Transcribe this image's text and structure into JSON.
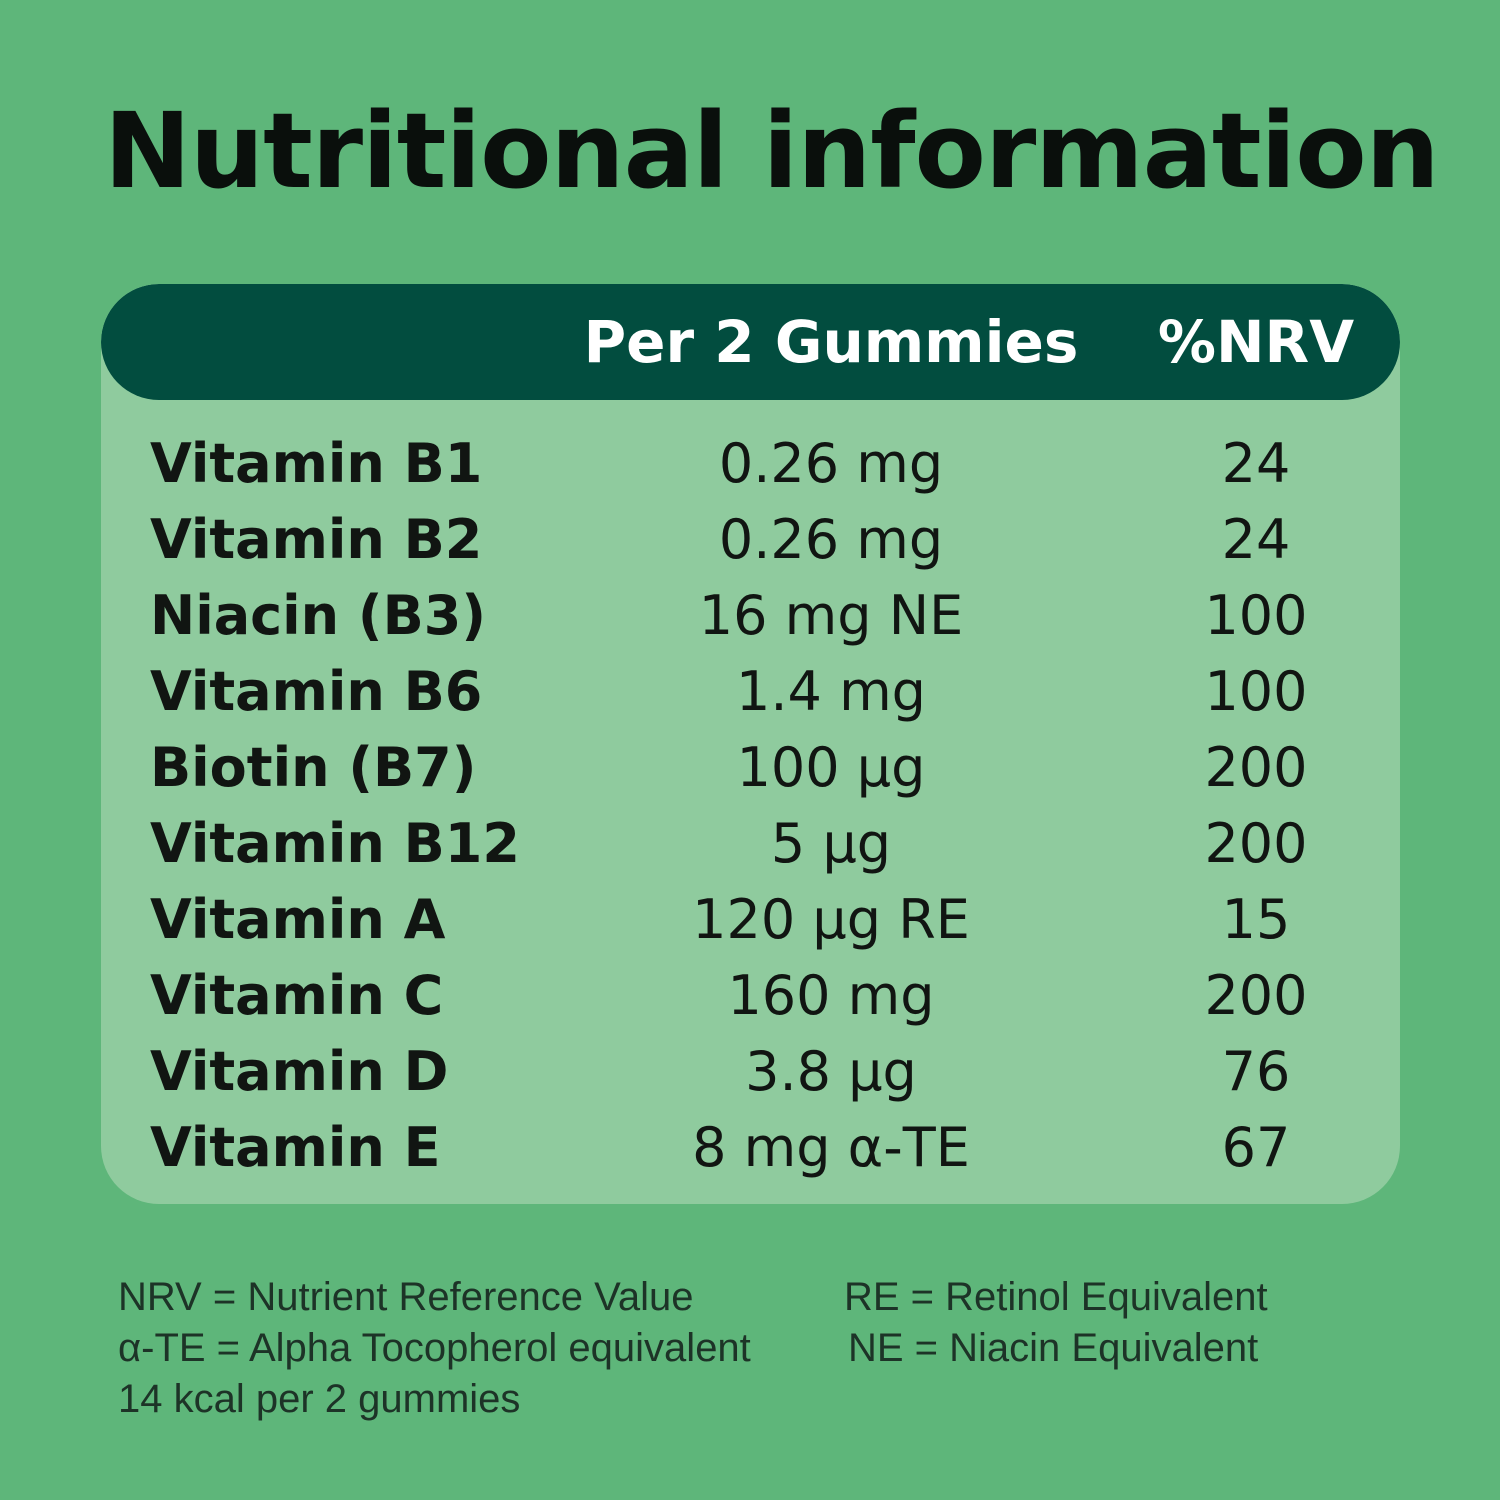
{
  "title": "Nutritional information",
  "table": {
    "header": {
      "amount_label": "Per 2 Gummies",
      "nrv_label": "%NRV"
    },
    "rows": [
      {
        "name": "Vitamin B1",
        "amount": "0.26 mg",
        "nrv": "24"
      },
      {
        "name": "Vitamin B2",
        "amount": "0.26 mg",
        "nrv": "24"
      },
      {
        "name": "Niacin (B3)",
        "amount": "16 mg NE",
        "nrv": "100"
      },
      {
        "name": "Vitamin B6",
        "amount": "1.4 mg",
        "nrv": "100"
      },
      {
        "name": "Biotin (B7)",
        "amount": "100 µg",
        "nrv": "200"
      },
      {
        "name": "Vitamin B12",
        "amount": "5 µg",
        "nrv": "200"
      },
      {
        "name": "Vitamin A",
        "amount": "120 µg RE",
        "nrv": "15"
      },
      {
        "name": "Vitamin C",
        "amount": "160 mg",
        "nrv": "200"
      },
      {
        "name": "Vitamin D",
        "amount": "3.8 µg",
        "nrv": "76"
      },
      {
        "name": "Vitamin E",
        "amount": "8 mg  α-TE",
        "nrv": "67"
      }
    ]
  },
  "footnotes": {
    "nrv": "NRV = Nutrient Reference Value",
    "ate": "α-TE = Alpha Tocopherol equivalent",
    "kcal": "14 kcal per 2 gummies",
    "re": "RE = Retinol Equivalent",
    "ne": "NE = Niacin Equivalent"
  },
  "colors": {
    "background": "#5eb67a",
    "card": "#8fcb9e",
    "header": "#024d3f",
    "header_text": "#ffffff",
    "text": "#111512"
  }
}
